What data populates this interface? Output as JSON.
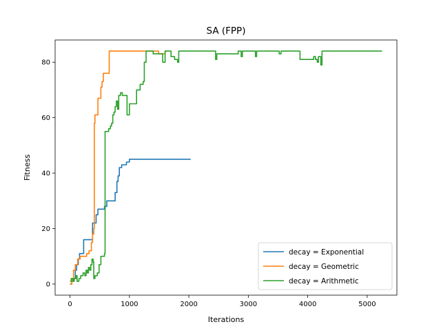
{
  "chart_data": {
    "type": "line",
    "title": "SA (FPP)",
    "xlabel": "Iterations",
    "ylabel": "Fitness",
    "xlim": [
      -250,
      5500
    ],
    "ylim": [
      -4,
      88
    ],
    "xticks": [
      0,
      1000,
      2000,
      3000,
      4000,
      5000
    ],
    "yticks": [
      0,
      20,
      40,
      60,
      80
    ],
    "grid": false,
    "legend_position": "lower-right",
    "step": true,
    "series": [
      {
        "name": "decay = Exponential",
        "color": "#1f77b4",
        "points": [
          [
            0,
            0
          ],
          [
            30,
            1
          ],
          [
            60,
            2
          ],
          [
            90,
            5
          ],
          [
            110,
            7
          ],
          [
            140,
            9
          ],
          [
            160,
            11
          ],
          [
            230,
            16
          ],
          [
            360,
            16
          ],
          [
            380,
            22
          ],
          [
            420,
            22
          ],
          [
            440,
            25
          ],
          [
            470,
            27
          ],
          [
            560,
            27
          ],
          [
            580,
            28
          ],
          [
            620,
            30
          ],
          [
            740,
            30
          ],
          [
            760,
            33
          ],
          [
            790,
            37
          ],
          [
            810,
            39
          ],
          [
            830,
            42
          ],
          [
            870,
            43
          ],
          [
            950,
            44
          ],
          [
            1000,
            45
          ],
          [
            2030,
            45
          ]
        ]
      },
      {
        "name": "decay = Geometric",
        "color": "#ff7f0e",
        "points": [
          [
            0,
            0
          ],
          [
            30,
            2
          ],
          [
            60,
            5
          ],
          [
            90,
            7
          ],
          [
            130,
            9
          ],
          [
            170,
            10
          ],
          [
            220,
            10
          ],
          [
            280,
            11
          ],
          [
            320,
            12
          ],
          [
            360,
            15
          ],
          [
            380,
            18
          ],
          [
            400,
            20
          ],
          [
            410,
            58
          ],
          [
            420,
            61
          ],
          [
            450,
            61
          ],
          [
            470,
            67
          ],
          [
            510,
            67
          ],
          [
            520,
            71
          ],
          [
            540,
            73
          ],
          [
            560,
            76
          ],
          [
            640,
            76
          ],
          [
            660,
            84
          ],
          [
            1450,
            84
          ],
          [
            1490,
            83
          ],
          [
            1580,
            83
          ],
          [
            1600,
            84
          ],
          [
            1640,
            84
          ]
        ]
      },
      {
        "name": "decay = Arithmetic",
        "color": "#2ca02c",
        "points": [
          [
            0,
            1
          ],
          [
            20,
            2
          ],
          [
            50,
            1
          ],
          [
            70,
            2
          ],
          [
            100,
            3
          ],
          [
            120,
            1
          ],
          [
            150,
            2
          ],
          [
            180,
            3
          ],
          [
            220,
            4
          ],
          [
            250,
            3
          ],
          [
            270,
            5
          ],
          [
            290,
            4
          ],
          [
            310,
            6
          ],
          [
            330,
            5
          ],
          [
            350,
            7
          ],
          [
            370,
            9
          ],
          [
            390,
            8
          ],
          [
            400,
            2
          ],
          [
            420,
            3
          ],
          [
            460,
            4
          ],
          [
            490,
            7
          ],
          [
            520,
            10
          ],
          [
            560,
            10
          ],
          [
            580,
            11
          ],
          [
            590,
            55
          ],
          [
            640,
            55
          ],
          [
            650,
            56
          ],
          [
            680,
            57
          ],
          [
            700,
            58
          ],
          [
            720,
            61
          ],
          [
            740,
            62
          ],
          [
            760,
            64
          ],
          [
            780,
            66
          ],
          [
            800,
            63
          ],
          [
            820,
            68
          ],
          [
            850,
            69
          ],
          [
            880,
            68
          ],
          [
            940,
            68
          ],
          [
            960,
            61
          ],
          [
            1000,
            65
          ],
          [
            1100,
            65
          ],
          [
            1120,
            70
          ],
          [
            1180,
            72
          ],
          [
            1230,
            73
          ],
          [
            1250,
            80
          ],
          [
            1280,
            84
          ],
          [
            1380,
            84
          ],
          [
            1400,
            83
          ],
          [
            1530,
            83
          ],
          [
            1560,
            80
          ],
          [
            1600,
            84
          ],
          [
            1660,
            84
          ],
          [
            1700,
            82
          ],
          [
            1760,
            81
          ],
          [
            1810,
            80
          ],
          [
            1830,
            84
          ],
          [
            2430,
            84
          ],
          [
            2450,
            81
          ],
          [
            2470,
            83
          ],
          [
            2800,
            83
          ],
          [
            2830,
            84
          ],
          [
            2880,
            82
          ],
          [
            2900,
            84
          ],
          [
            3100,
            84
          ],
          [
            3120,
            82
          ],
          [
            3140,
            84
          ],
          [
            3500,
            84
          ],
          [
            3520,
            83
          ],
          [
            3550,
            84
          ],
          [
            3850,
            84
          ],
          [
            3870,
            81
          ],
          [
            4080,
            81
          ],
          [
            4100,
            82
          ],
          [
            4130,
            81
          ],
          [
            4160,
            80
          ],
          [
            4180,
            82
          ],
          [
            4220,
            79
          ],
          [
            4240,
            84
          ],
          [
            5250,
            84
          ]
        ]
      }
    ]
  }
}
